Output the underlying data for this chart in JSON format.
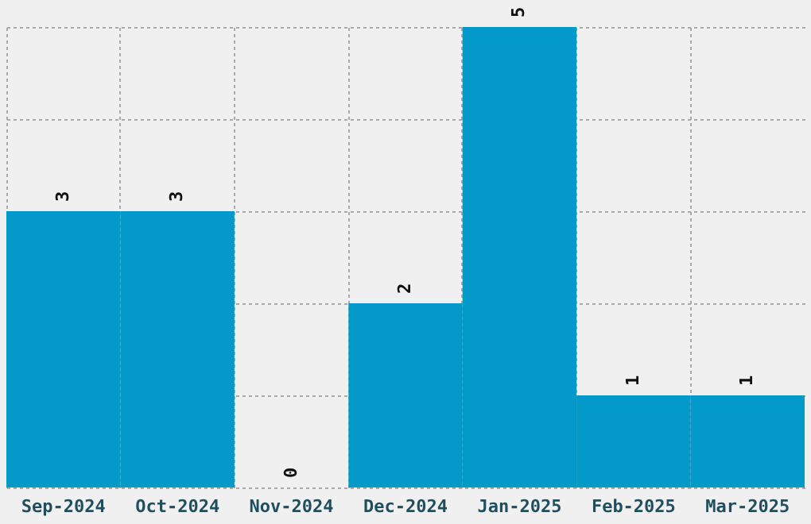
{
  "chart_data": {
    "type": "bar",
    "categories": [
      "Sep-2024",
      "Oct-2024",
      "Nov-2024",
      "Dec-2024",
      "Jan-2025",
      "Feb-2025",
      "Mar-2025"
    ],
    "values": [
      3,
      3,
      0,
      2,
      5,
      1,
      1
    ],
    "color": "#0399c9",
    "data_labels": true,
    "grid": true,
    "tick_labels": "x"
  }
}
